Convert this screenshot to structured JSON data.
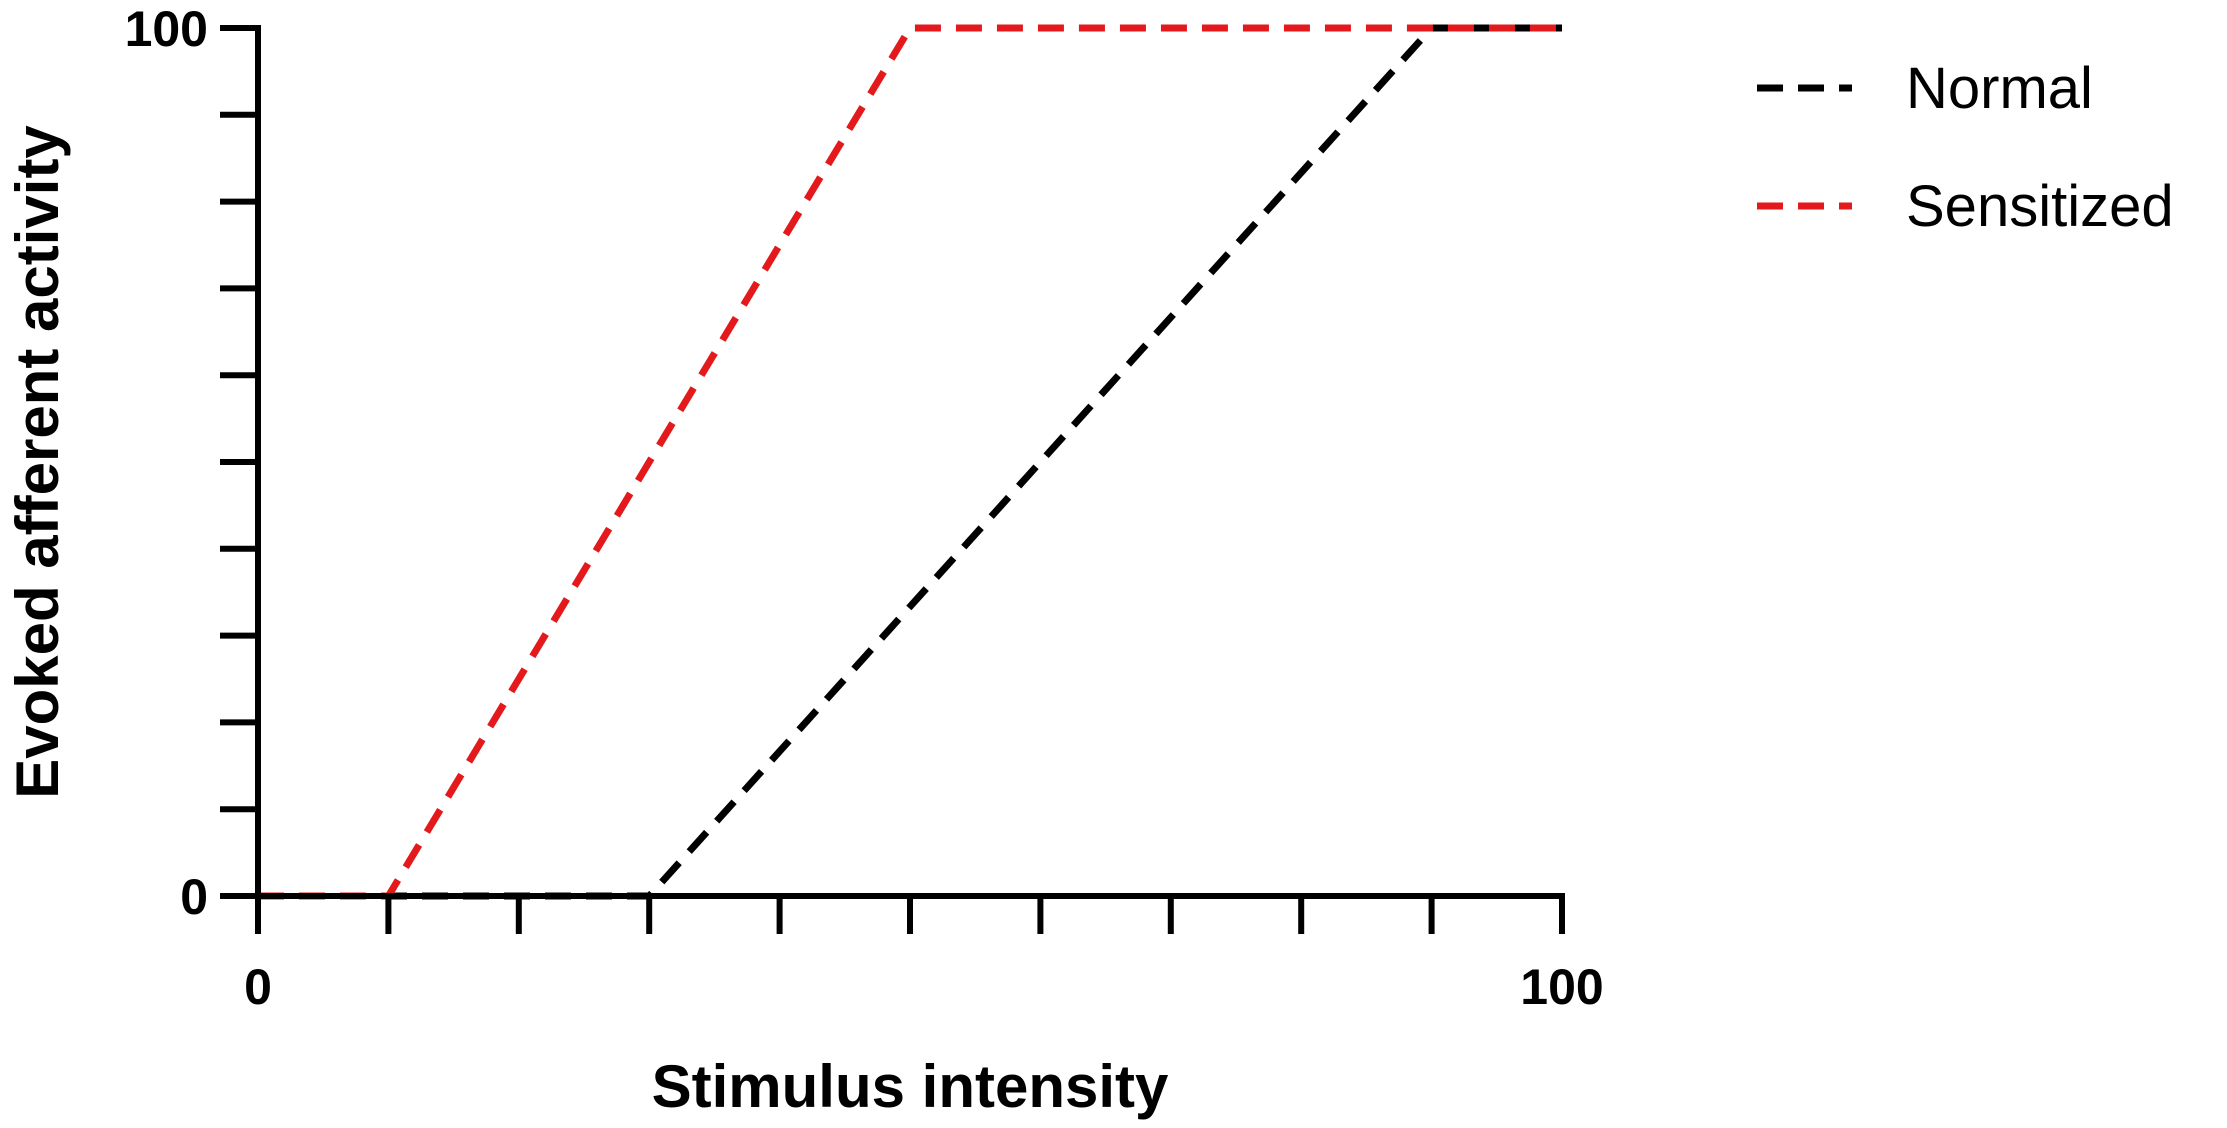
{
  "chart_data": {
    "type": "line",
    "title": "",
    "xlabel": "Stimulus intensity",
    "ylabel": "Evoked afferent activity",
    "xlim": [
      0,
      100
    ],
    "ylim": [
      0,
      100
    ],
    "x_ticks": [
      0,
      10,
      20,
      30,
      40,
      50,
      60,
      70,
      80,
      90,
      100
    ],
    "x_tick_labels": [
      "0",
      "",
      "",
      "",
      "",
      "",
      "",
      "",
      "",
      "",
      "100"
    ],
    "y_ticks": [
      0,
      10,
      20,
      30,
      40,
      50,
      60,
      70,
      80,
      90,
      100
    ],
    "y_tick_labels": [
      "0",
      "",
      "",
      "",
      "",
      "",
      "",
      "",
      "",
      "",
      "100"
    ],
    "grid": false,
    "legend_position": "top-right",
    "line_style": "dashed",
    "series": [
      {
        "name": "Normal",
        "color": "#000000",
        "x": [
          0,
          30,
          90,
          100
        ],
        "y": [
          0,
          0,
          100,
          100
        ]
      },
      {
        "name": "Sensitized",
        "color": "#e3191c",
        "x": [
          0,
          10,
          50,
          100
        ],
        "y": [
          0,
          0,
          100,
          100
        ]
      }
    ]
  }
}
